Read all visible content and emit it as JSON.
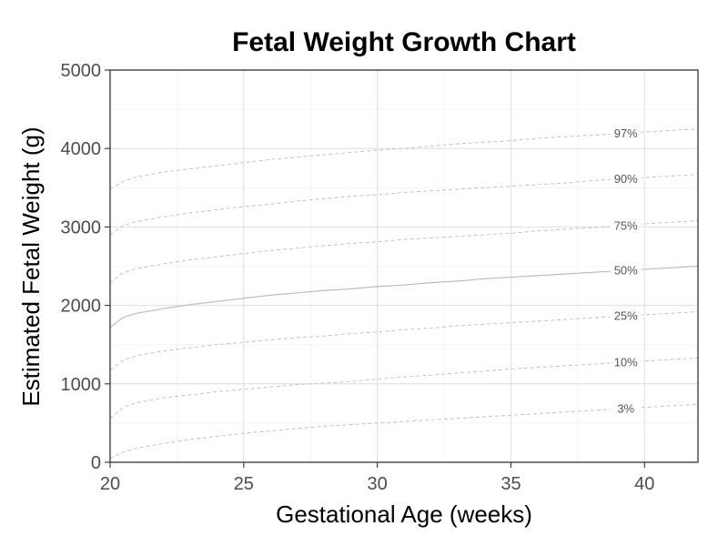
{
  "chart_data": {
    "type": "line",
    "title": "Fetal Weight Growth Chart",
    "xlabel": "Gestational Age (weeks)",
    "ylabel": "Estimated Fetal Weight (g)",
    "xlim": [
      20,
      42
    ],
    "ylim": [
      0,
      5000
    ],
    "x_ticks": [
      20,
      25,
      30,
      35,
      40
    ],
    "y_ticks": [
      0,
      1000,
      2000,
      3000,
      4000,
      5000
    ],
    "grid": true,
    "legend": "none",
    "x": [
      20,
      20.5,
      21,
      22,
      23,
      24,
      25,
      26,
      27,
      28,
      29,
      30,
      31,
      32,
      33,
      34,
      35,
      36,
      37,
      38,
      39,
      40,
      41,
      42
    ],
    "series": [
      {
        "name": "3%",
        "style": "dashed",
        "values": [
          50,
          130,
          180,
          240,
          290,
          330,
          370,
          400,
          430,
          460,
          480,
          500,
          520,
          540,
          560,
          580,
          600,
          620,
          640,
          660,
          680,
          700,
          720,
          740
        ]
      },
      {
        "name": "10%",
        "style": "dashed",
        "values": [
          560,
          700,
          760,
          820,
          860,
          900,
          930,
          960,
          990,
          1010,
          1030,
          1060,
          1090,
          1110,
          1140,
          1160,
          1190,
          1210,
          1230,
          1250,
          1270,
          1290,
          1310,
          1330
        ]
      },
      {
        "name": "25%",
        "style": "dashed",
        "values": [
          1180,
          1300,
          1360,
          1420,
          1460,
          1500,
          1530,
          1560,
          1590,
          1610,
          1640,
          1660,
          1690,
          1710,
          1740,
          1760,
          1780,
          1800,
          1820,
          1840,
          1860,
          1880,
          1900,
          1920
        ]
      },
      {
        "name": "50%",
        "style": "solid",
        "values": [
          1720,
          1850,
          1900,
          1960,
          2010,
          2050,
          2090,
          2130,
          2160,
          2190,
          2210,
          2240,
          2260,
          2290,
          2310,
          2340,
          2360,
          2380,
          2400,
          2420,
          2440,
          2460,
          2480,
          2500
        ]
      },
      {
        "name": "75%",
        "style": "dashed",
        "values": [
          2290,
          2420,
          2470,
          2530,
          2580,
          2620,
          2660,
          2700,
          2730,
          2760,
          2790,
          2810,
          2840,
          2860,
          2880,
          2900,
          2920,
          2950,
          2970,
          2990,
          3010,
          3040,
          3060,
          3080
        ]
      },
      {
        "name": "90%",
        "style": "dashed",
        "values": [
          2900,
          3020,
          3070,
          3130,
          3180,
          3220,
          3260,
          3290,
          3330,
          3360,
          3390,
          3410,
          3440,
          3460,
          3480,
          3500,
          3520,
          3540,
          3560,
          3590,
          3610,
          3630,
          3650,
          3670
        ]
      },
      {
        "name": "97%",
        "style": "dashed",
        "values": [
          3480,
          3580,
          3640,
          3700,
          3740,
          3780,
          3820,
          3860,
          3890,
          3920,
          3950,
          3980,
          4000,
          4030,
          4060,
          4080,
          4100,
          4130,
          4150,
          4170,
          4190,
          4210,
          4230,
          4250
        ]
      }
    ],
    "label_x": 39.3,
    "colors": {
      "line": "#bdbdbd",
      "label": "#555555",
      "grid": "#dedede",
      "border": "#333333"
    }
  }
}
